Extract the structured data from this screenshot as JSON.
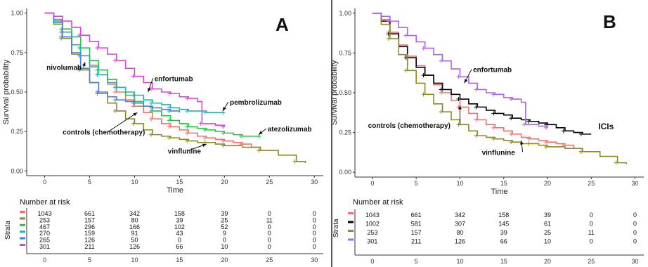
{
  "chart_data": [
    {
      "type": "line",
      "panel_label": "A",
      "xlabel": "Time",
      "ylabel": "Survival probability",
      "xlim": [
        -2,
        31
      ],
      "ylim": [
        -0.03,
        1.03
      ],
      "xticks": [
        "0",
        "5",
        "10",
        "15",
        "20",
        "25",
        "30"
      ],
      "yticks": [
        "0.00",
        "0.25",
        "0.50",
        "0.75",
        "1.00"
      ],
      "grid": false,
      "series": [
        {
          "color": "#f07070",
          "x": [
            0,
            1,
            2,
            3,
            4,
            5,
            6,
            7,
            8,
            9,
            10,
            11,
            12,
            13,
            14,
            15,
            16,
            17,
            18,
            19,
            20,
            21,
            22,
            23,
            24
          ],
          "y": [
            1.0,
            0.96,
            0.88,
            0.8,
            0.73,
            0.67,
            0.61,
            0.55,
            0.5,
            0.45,
            0.41,
            0.37,
            0.33,
            0.3,
            0.28,
            0.26,
            0.24,
            0.22,
            0.21,
            0.2,
            0.19,
            0.18,
            0.17,
            0.15,
            0.13
          ]
        },
        {
          "color": "#8b8b1f",
          "x": [
            0,
            1,
            2,
            3,
            4,
            5,
            6,
            7,
            8,
            9,
            10,
            11,
            12,
            13,
            14,
            15,
            16,
            17,
            18,
            19,
            20,
            22,
            24,
            26,
            28,
            29
          ],
          "y": [
            1.0,
            0.93,
            0.84,
            0.74,
            0.64,
            0.56,
            0.49,
            0.43,
            0.38,
            0.33,
            0.3,
            0.26,
            0.23,
            0.22,
            0.21,
            0.2,
            0.19,
            0.18,
            0.18,
            0.17,
            0.16,
            0.15,
            0.13,
            0.1,
            0.06,
            0.05
          ]
        },
        {
          "color": "#1ec840",
          "x": [
            0,
            1,
            2,
            3,
            4,
            5,
            6,
            7,
            8,
            9,
            10,
            11,
            12,
            13,
            14,
            15,
            16,
            17,
            18,
            19,
            20,
            21,
            22,
            23,
            24
          ],
          "y": [
            1.0,
            0.96,
            0.9,
            0.85,
            0.78,
            0.7,
            0.64,
            0.58,
            0.53,
            0.48,
            0.44,
            0.41,
            0.38,
            0.35,
            0.32,
            0.3,
            0.28,
            0.27,
            0.26,
            0.25,
            0.24,
            0.23,
            0.22,
            0.22,
            0.22
          ]
        },
        {
          "color": "#20b4b4",
          "x": [
            0,
            1,
            2,
            3,
            4,
            5,
            6,
            7,
            8,
            9,
            10,
            11,
            12,
            13,
            14,
            15,
            16,
            17,
            18,
            19,
            20
          ],
          "y": [
            1.0,
            0.95,
            0.88,
            0.8,
            0.73,
            0.66,
            0.61,
            0.56,
            0.53,
            0.5,
            0.48,
            0.45,
            0.43,
            0.42,
            0.4,
            0.39,
            0.38,
            0.38,
            0.37,
            0.37,
            0.37
          ]
        },
        {
          "color": "#4a7fe0",
          "x": [
            0,
            1,
            2,
            3,
            4,
            5,
            6,
            7,
            8,
            9,
            10,
            11,
            12,
            13,
            14,
            15
          ],
          "y": [
            1.0,
            0.94,
            0.85,
            0.75,
            0.65,
            0.56,
            0.5,
            0.47,
            0.45,
            0.44,
            0.43,
            0.41,
            0.4,
            0.39,
            0.38,
            0.37
          ]
        },
        {
          "color": "#e040e0",
          "x": [
            0,
            1,
            2,
            3,
            4,
            5,
            6,
            7,
            8,
            9,
            10,
            11,
            12,
            13,
            14,
            15,
            16,
            17,
            17.5,
            19,
            20
          ],
          "y": [
            1.0,
            0.98,
            0.95,
            0.91,
            0.86,
            0.82,
            0.78,
            0.74,
            0.7,
            0.65,
            0.6,
            0.56,
            0.52,
            0.5,
            0.49,
            0.47,
            0.46,
            0.44,
            0.3,
            0.29,
            0.28
          ]
        }
      ],
      "annotations": [
        {
          "text": "nivolumab",
          "x": 0.2,
          "y": 0.64,
          "arrow_x": 4.5,
          "arrow_y": 0.69
        },
        {
          "text": "enfortumab",
          "x": 12.2,
          "y": 0.57,
          "arrow_x": 11.5,
          "arrow_y": 0.5
        },
        {
          "text": "pembrolizumab",
          "x": 20.6,
          "y": 0.42,
          "arrow_x": 19.8,
          "arrow_y": 0.38
        },
        {
          "text": "controls (chemotherapy)",
          "x": 2.0,
          "y": 0.23,
          "arrow_x": 10.3,
          "arrow_y": 0.37
        },
        {
          "text": "atezolizumab",
          "x": 24.8,
          "y": 0.25,
          "arrow_x": 23.8,
          "arrow_y": 0.23
        },
        {
          "text": "vinflunine",
          "x": 13.7,
          "y": 0.11,
          "arrow_x": 18.0,
          "arrow_y": 0.17
        }
      ],
      "risk_table": {
        "title": "Number at risk",
        "strata_label": "Strata",
        "colors": [
          "#f07070",
          "#8b8b1f",
          "#1ec840",
          "#20b4b4",
          "#4a7fe0",
          "#e040e0"
        ],
        "rows": [
          [
            "1043",
            "661",
            "342",
            "158",
            "39",
            "0",
            "0"
          ],
          [
            "253",
            "157",
            "80",
            "39",
            "25",
            "11",
            "0"
          ],
          [
            "467",
            "296",
            "166",
            "102",
            "52",
            "0",
            "0"
          ],
          [
            "270",
            "159",
            "91",
            "43",
            "9",
            "0",
            "0"
          ],
          [
            "265",
            "126",
            "50",
            "0",
            "0",
            "0",
            "0"
          ],
          [
            "301",
            "211",
            "126",
            "66",
            "10",
            "0",
            "0"
          ]
        ],
        "xticks": [
          "0",
          "5",
          "10",
          "15",
          "20",
          "25",
          "30"
        ]
      }
    },
    {
      "type": "line",
      "panel_label": "B",
      "xlabel": "Time",
      "ylabel": "Survival probability",
      "xlim": [
        -2,
        31
      ],
      "ylim": [
        -0.03,
        1.03
      ],
      "xticks": [
        "0",
        "5",
        "10",
        "15",
        "20",
        "25",
        "30"
      ],
      "yticks": [
        "0.00",
        "0.25",
        "0.50",
        "0.75",
        "1.00"
      ],
      "grid": false,
      "series": [
        {
          "color": "#f07070",
          "x": [
            0,
            1,
            2,
            3,
            4,
            5,
            6,
            7,
            8,
            9,
            10,
            11,
            12,
            13,
            14,
            15,
            16,
            17,
            18,
            19,
            20,
            21,
            22,
            23,
            24
          ],
          "y": [
            1.0,
            0.96,
            0.88,
            0.8,
            0.73,
            0.67,
            0.61,
            0.55,
            0.5,
            0.45,
            0.41,
            0.37,
            0.33,
            0.3,
            0.28,
            0.26,
            0.24,
            0.22,
            0.21,
            0.2,
            0.19,
            0.18,
            0.17,
            0.15,
            0.13
          ]
        },
        {
          "color": "#000000",
          "x": [
            0,
            1,
            2,
            3,
            4,
            5,
            6,
            7,
            8,
            9,
            10,
            11,
            12,
            13,
            14,
            15,
            16,
            17,
            18,
            19,
            20,
            21,
            22,
            23,
            24,
            25
          ],
          "y": [
            1.0,
            0.95,
            0.87,
            0.79,
            0.72,
            0.66,
            0.61,
            0.56,
            0.52,
            0.49,
            0.46,
            0.43,
            0.41,
            0.39,
            0.37,
            0.36,
            0.34,
            0.33,
            0.32,
            0.31,
            0.3,
            0.28,
            0.26,
            0.25,
            0.24,
            0.24
          ]
        },
        {
          "color": "#8b8b1f",
          "x": [
            0,
            1,
            2,
            3,
            4,
            5,
            6,
            7,
            8,
            9,
            10,
            11,
            12,
            13,
            14,
            15,
            16,
            17,
            18,
            19,
            20,
            22,
            24,
            26,
            28,
            29
          ],
          "y": [
            1.0,
            0.93,
            0.84,
            0.74,
            0.64,
            0.56,
            0.49,
            0.43,
            0.38,
            0.33,
            0.3,
            0.26,
            0.23,
            0.22,
            0.21,
            0.2,
            0.19,
            0.18,
            0.18,
            0.17,
            0.16,
            0.15,
            0.13,
            0.1,
            0.06,
            0.05
          ]
        },
        {
          "color": "#b060f0",
          "x": [
            0,
            1,
            2,
            3,
            4,
            5,
            6,
            7,
            8,
            9,
            10,
            11,
            12,
            13,
            14,
            15,
            16,
            17,
            17.5,
            19,
            20
          ],
          "y": [
            1.0,
            0.98,
            0.95,
            0.91,
            0.86,
            0.82,
            0.78,
            0.74,
            0.7,
            0.65,
            0.6,
            0.56,
            0.52,
            0.5,
            0.49,
            0.47,
            0.46,
            0.44,
            0.3,
            0.29,
            0.28
          ]
        }
      ],
      "annotations": [
        {
          "text": "enfortumab",
          "x": 11.5,
          "y": 0.63,
          "arrow_x": 10.5,
          "arrow_y": 0.56
        },
        {
          "text": "controls (chemotherapy)",
          "x": -0.5,
          "y": 0.28,
          "arrow_x": 10.0,
          "arrow_y": 0.42
        },
        {
          "text": "vinflunine",
          "x": 12.5,
          "y": 0.11,
          "arrow_x": 17.0,
          "arrow_y": 0.2
        }
      ],
      "series_label": {
        "text": "ICIs",
        "x": 25.8,
        "y": 0.27
      },
      "risk_table": {
        "title": "Number at risk",
        "strata_label": "Strata",
        "colors": [
          "#f07070",
          "#000000",
          "#8b8b1f",
          "#b060f0"
        ],
        "rows": [
          [
            "1043",
            "661",
            "342",
            "158",
            "39",
            "0",
            "0"
          ],
          [
            "1002",
            "581",
            "307",
            "145",
            "61",
            "0",
            "0"
          ],
          [
            "253",
            "157",
            "80",
            "39",
            "25",
            "11",
            "0"
          ],
          [
            "301",
            "211",
            "126",
            "66",
            "10",
            "0",
            "0"
          ]
        ],
        "xticks": [
          "0",
          "5",
          "10",
          "15",
          "20",
          "25",
          "30"
        ]
      }
    }
  ]
}
